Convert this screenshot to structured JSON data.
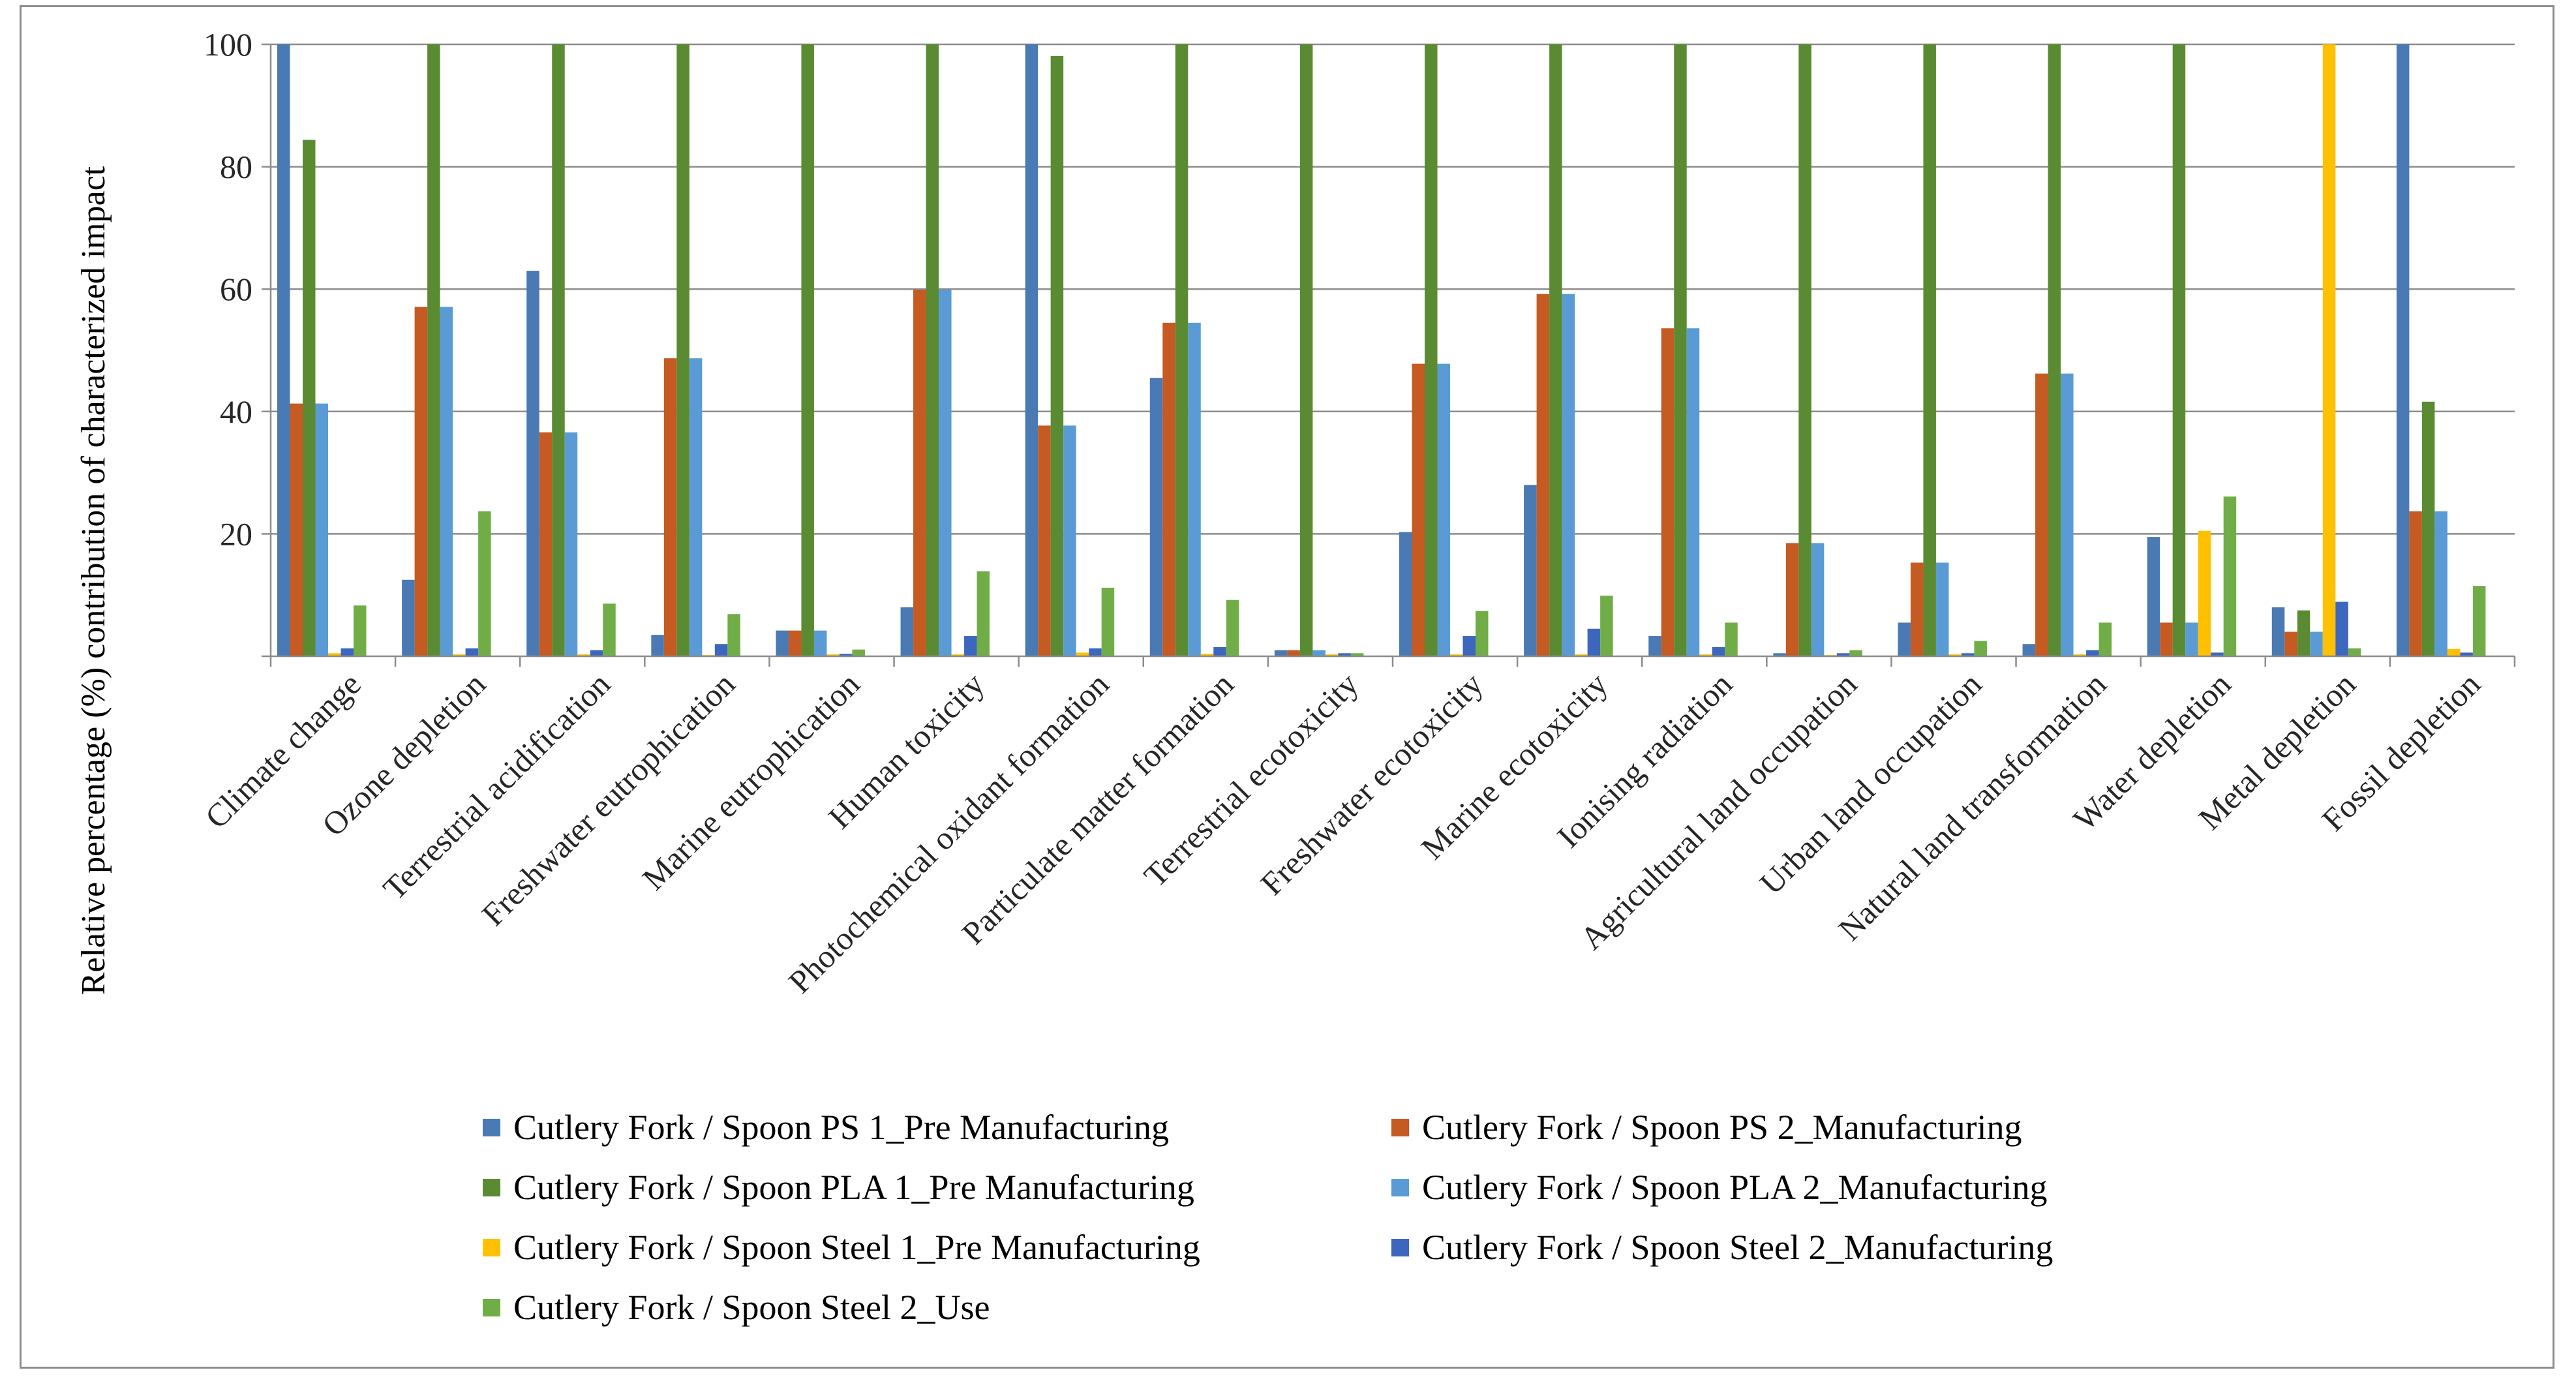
{
  "chart_data": {
    "type": "bar",
    "title": "",
    "xlabel": "",
    "ylabel": "Relative percentage (%) contribution of characterized impact",
    "ylim": [
      0,
      100
    ],
    "yticks": [
      "20",
      "40",
      "60",
      "80",
      "100"
    ],
    "grid": true,
    "legend_position": "bottom",
    "categories": [
      "Climate change",
      "Ozone depletion",
      "Terrestrial acidification",
      "Freshwater eutrophication",
      "Marine eutrophication",
      "Human toxicity",
      "Photochemical oxidant formation",
      "Particulate matter formation",
      "Terrestrial ecotoxicity",
      "Freshwater ecotoxicity",
      "Marine ecotoxicity",
      "Ionising radiation",
      "Agricultural land occupation",
      "Urban land occupation",
      "Natural land transformation",
      "Water depletion",
      "Metal depletion",
      "Fossil depletion"
    ],
    "series": [
      {
        "name": "Cutlery Fork / Spoon PS 1_Pre Manufacturing",
        "color": "#4a7ab4",
        "values": [
          100,
          12.5,
          63,
          3.5,
          4.2,
          8,
          100,
          45.5,
          1,
          20.3,
          28,
          3.3,
          0.5,
          5.5,
          2,
          19.5,
          8,
          100
        ]
      },
      {
        "name": "Cutlery Fork / Spoon PS 2_Manufacturing",
        "color": "#c55a22",
        "values": [
          41.3,
          57.1,
          36.6,
          48.7,
          4.2,
          59.9,
          37.7,
          54.5,
          1,
          47.8,
          59.2,
          53.6,
          18.5,
          15.3,
          46.2,
          5.5,
          4,
          23.7
        ]
      },
      {
        "name": "Cutlery Fork / Spoon PLA 1_Pre Manufacturing",
        "color": "#5a8b32",
        "values": [
          84.4,
          100,
          100,
          100,
          100,
          100,
          98.1,
          100,
          100,
          100,
          100,
          100,
          100,
          100,
          100,
          100,
          7.5,
          41.6
        ]
      },
      {
        "name": "Cutlery Fork / Spoon PLA 2_Manufacturing",
        "color": "#5b9bd5",
        "values": [
          41.3,
          57.1,
          36.6,
          48.7,
          4.2,
          59.9,
          37.7,
          54.5,
          1,
          47.8,
          59.2,
          53.6,
          18.5,
          15.3,
          46.2,
          5.5,
          4,
          23.7
        ]
      },
      {
        "name": "Cutlery Fork / Spoon Steel 1_Pre Manufacturing",
        "color": "#ffc000",
        "values": [
          0.5,
          0.3,
          0.3,
          0.2,
          0.3,
          0.3,
          0.6,
          0.4,
          0.3,
          0.3,
          0.3,
          0.3,
          0.2,
          0.3,
          0.3,
          20.5,
          100,
          1.2
        ]
      },
      {
        "name": "Cutlery Fork / Spoon Steel 2_Manufacturing",
        "color": "#3d66be",
        "values": [
          1.3,
          1.3,
          1,
          2,
          0.4,
          3.3,
          1.3,
          1.5,
          0.5,
          3.3,
          4.5,
          1.5,
          0.5,
          0.5,
          1,
          0.6,
          8.9,
          0.6
        ]
      },
      {
        "name": "Cutlery Fork / Spoon Steel 2_Use",
        "color": "#71ad47",
        "values": [
          8.3,
          23.7,
          8.6,
          6.9,
          1.1,
          13.9,
          11.2,
          9.2,
          0.5,
          7.4,
          9.9,
          5.5,
          1,
          2.5,
          5.5,
          26.1,
          1.3,
          11.5
        ]
      }
    ]
  }
}
